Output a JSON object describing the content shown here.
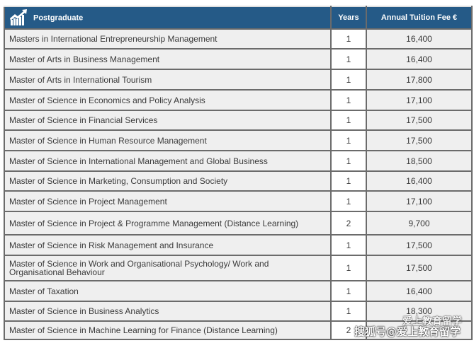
{
  "header": {
    "program": "Postgraduate",
    "years": "Years",
    "fee": "Annual Tuition Fee €",
    "icon": "chart-growth-icon"
  },
  "rows": [
    {
      "name": "Masters in International Entrepreneurship Management",
      "years": "1",
      "fee": "16,400"
    },
    {
      "name": "Master of Arts in Business Management",
      "years": "1",
      "fee": "16,400"
    },
    {
      "name": "Master of Arts in International Tourism",
      "years": "1",
      "fee": "17,800"
    },
    {
      "name": "Master of Science in Economics and Policy Analysis",
      "years": "1",
      "fee": "17,100"
    },
    {
      "name": "Master of Science in Financial Services",
      "years": "1",
      "fee": "17,500"
    },
    {
      "name": "Master of Science in Human Resource Management",
      "years": "1",
      "fee": "17,500"
    },
    {
      "name": "Master of Science in International Management and Global Business",
      "years": "1",
      "fee": "18,500"
    },
    {
      "name": "Master of Science in Marketing, Consumption and Society",
      "years": "1",
      "fee": "16,400"
    },
    {
      "name": "Master of Science in Project Management",
      "years": "1",
      "fee": "17,100"
    },
    {
      "name": "Master of Science in Project & Programme Management (Distance Learning)",
      "years": "2",
      "fee": "9,700"
    },
    {
      "name": "Master of Science in Risk Management and Insurance",
      "years": "1",
      "fee": "17,500"
    },
    {
      "name": "Master of Science in Work and Organisational Psychology/ Work and Organisational Behaviour",
      "years": "1",
      "fee": "17,500"
    },
    {
      "name": "Master of Taxation",
      "years": "1",
      "fee": "16,400"
    },
    {
      "name": "Master of Science in Business Analytics",
      "years": "1",
      "fee": "18,300"
    },
    {
      "name": "Master of Science in Machine Learning for Finance (Distance Learning)",
      "years": "2",
      "fee": ""
    }
  ],
  "watermark": {
    "line1": "爱上教育留学",
    "line2": "搜狐号@爱上教育留学"
  }
}
